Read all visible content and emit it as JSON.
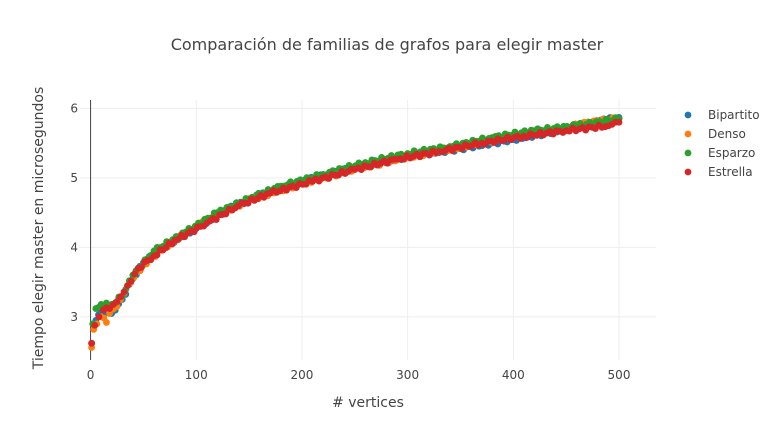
{
  "chart_data": {
    "type": "scatter",
    "title": "Comparación de familias de grafos para elegir master",
    "xlabel": "# vertices",
    "ylabel": "Tiempo elegir master en microsegundos",
    "xlim": [
      -10,
      535
    ],
    "ylim": [
      2.38,
      6.12
    ],
    "xticks": [
      0,
      100,
      200,
      300,
      400,
      500
    ],
    "yticks": [
      3,
      4,
      5,
      6
    ],
    "grid": true,
    "legend_position": "top-right",
    "series": [
      {
        "name": "Bipartito",
        "color": "#1f77b4",
        "x": [
          1,
          5,
          10,
          20,
          30,
          40,
          50,
          70,
          100,
          130,
          160,
          200,
          250,
          300,
          350,
          400,
          450,
          480,
          500
        ],
        "y": [
          2.62,
          2.95,
          3.1,
          3.05,
          3.25,
          3.55,
          3.78,
          4.02,
          4.27,
          4.55,
          4.75,
          4.95,
          5.15,
          5.3,
          5.42,
          5.55,
          5.7,
          5.82,
          5.87
        ]
      },
      {
        "name": "Denso",
        "color": "#ff7f0e",
        "x": [
          1,
          3,
          6,
          10,
          15,
          18,
          25,
          35,
          50,
          70,
          100,
          150,
          200,
          250,
          300,
          350,
          400,
          450,
          470,
          500
        ],
        "y": [
          2.56,
          2.82,
          2.9,
          3.0,
          2.92,
          3.05,
          3.15,
          3.45,
          3.75,
          4.0,
          4.3,
          4.68,
          4.92,
          5.12,
          5.3,
          5.45,
          5.6,
          5.72,
          5.8,
          5.85
        ]
      },
      {
        "name": "Esparzo",
        "color": "#2ca02c",
        "x": [
          2,
          5,
          10,
          15,
          20,
          30,
          40,
          60,
          90,
          120,
          150,
          180,
          220,
          260,
          300,
          340,
          380,
          420,
          460,
          500
        ],
        "y": [
          2.9,
          3.12,
          3.18,
          3.2,
          3.18,
          3.3,
          3.6,
          3.95,
          4.22,
          4.5,
          4.7,
          4.88,
          5.05,
          5.22,
          5.35,
          5.45,
          5.58,
          5.68,
          5.75,
          5.85
        ]
      },
      {
        "name": "Estrella",
        "color": "#d62728",
        "x": [
          1,
          4,
          8,
          12,
          18,
          25,
          35,
          45,
          60,
          80,
          110,
          140,
          170,
          210,
          250,
          290,
          330,
          370,
          410,
          450,
          490,
          500
        ],
        "y": [
          2.62,
          2.88,
          3.0,
          3.1,
          3.12,
          3.22,
          3.45,
          3.7,
          3.88,
          4.1,
          4.35,
          4.6,
          4.78,
          4.95,
          5.12,
          5.27,
          5.38,
          5.5,
          5.6,
          5.68,
          5.75,
          5.8
        ]
      }
    ]
  }
}
